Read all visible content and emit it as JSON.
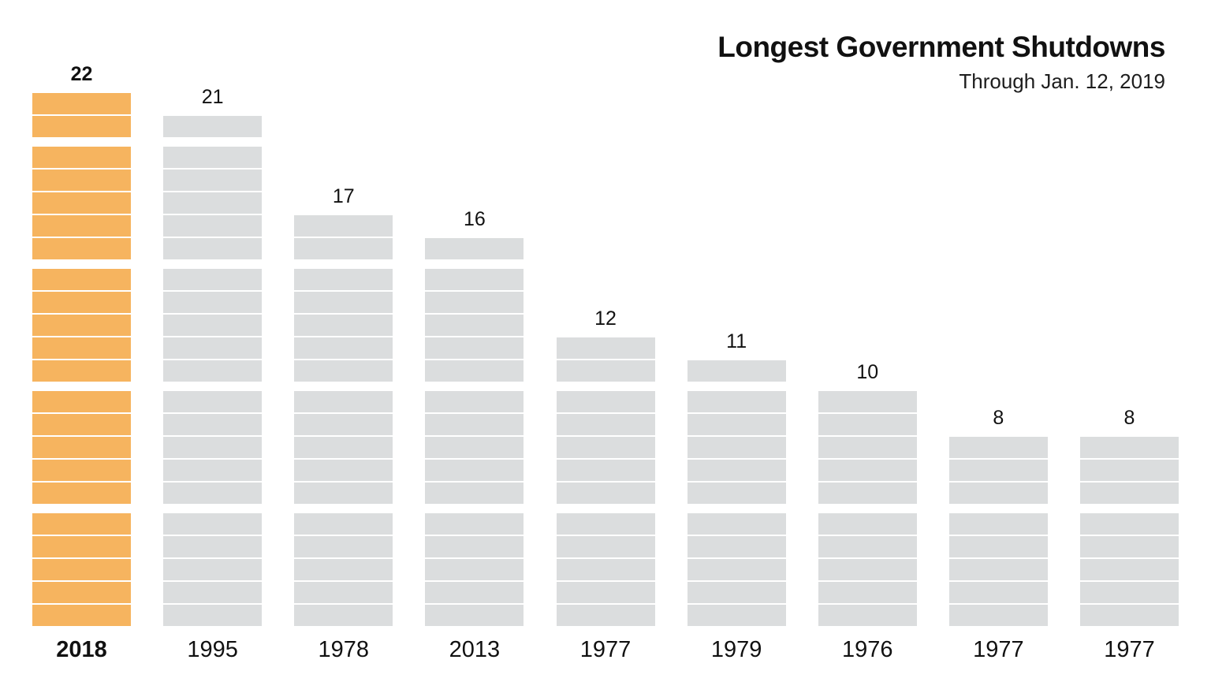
{
  "title": "Longest Government Shutdowns",
  "subtitle": "Through Jan. 12, 2019",
  "colors": {
    "highlight_bar": "#F6B45F",
    "default_bar": "#DBDDDE",
    "text": "#111111",
    "background": "#FFFFFF"
  },
  "chart_data": {
    "type": "bar",
    "title": "Longest Government Shutdowns",
    "subtitle": "Through Jan. 12, 2019",
    "unit": "days",
    "orientation": "vertical",
    "categories": [
      "2018",
      "1995",
      "1978",
      "2013",
      "1977",
      "1979",
      "1976",
      "1977",
      "1977"
    ],
    "values": [
      22,
      21,
      17,
      16,
      12,
      11,
      10,
      8,
      8
    ],
    "data_labels": [
      "22",
      "21",
      "17",
      "16",
      "12",
      "11",
      "10",
      "8",
      "8"
    ],
    "highlighted_index": 0,
    "highlighted_category": "2018",
    "block_group_size": 5,
    "bars_drawn_as": "stacked unit blocks, one block per day, grouped in fives from the bottom",
    "axes": "no visible axis lines, no gridlines, no y-axis ticks",
    "legend": "none",
    "ylim": [
      0,
      22
    ]
  }
}
